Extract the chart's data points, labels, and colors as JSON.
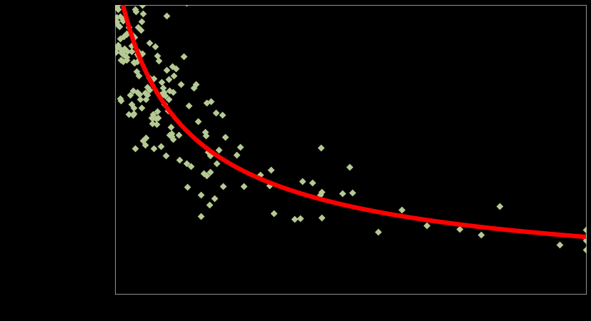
{
  "background_color": "#000000",
  "plot_bg_color": "#000000",
  "scatter_color": "#b5c994",
  "curve_color": "#ff0000",
  "curve_linewidth": 4.5,
  "marker": "D",
  "marker_size": 5,
  "grid_color": "#505050",
  "spine_color": "#888888",
  "scatter_seed": 99,
  "n_points": 230
}
